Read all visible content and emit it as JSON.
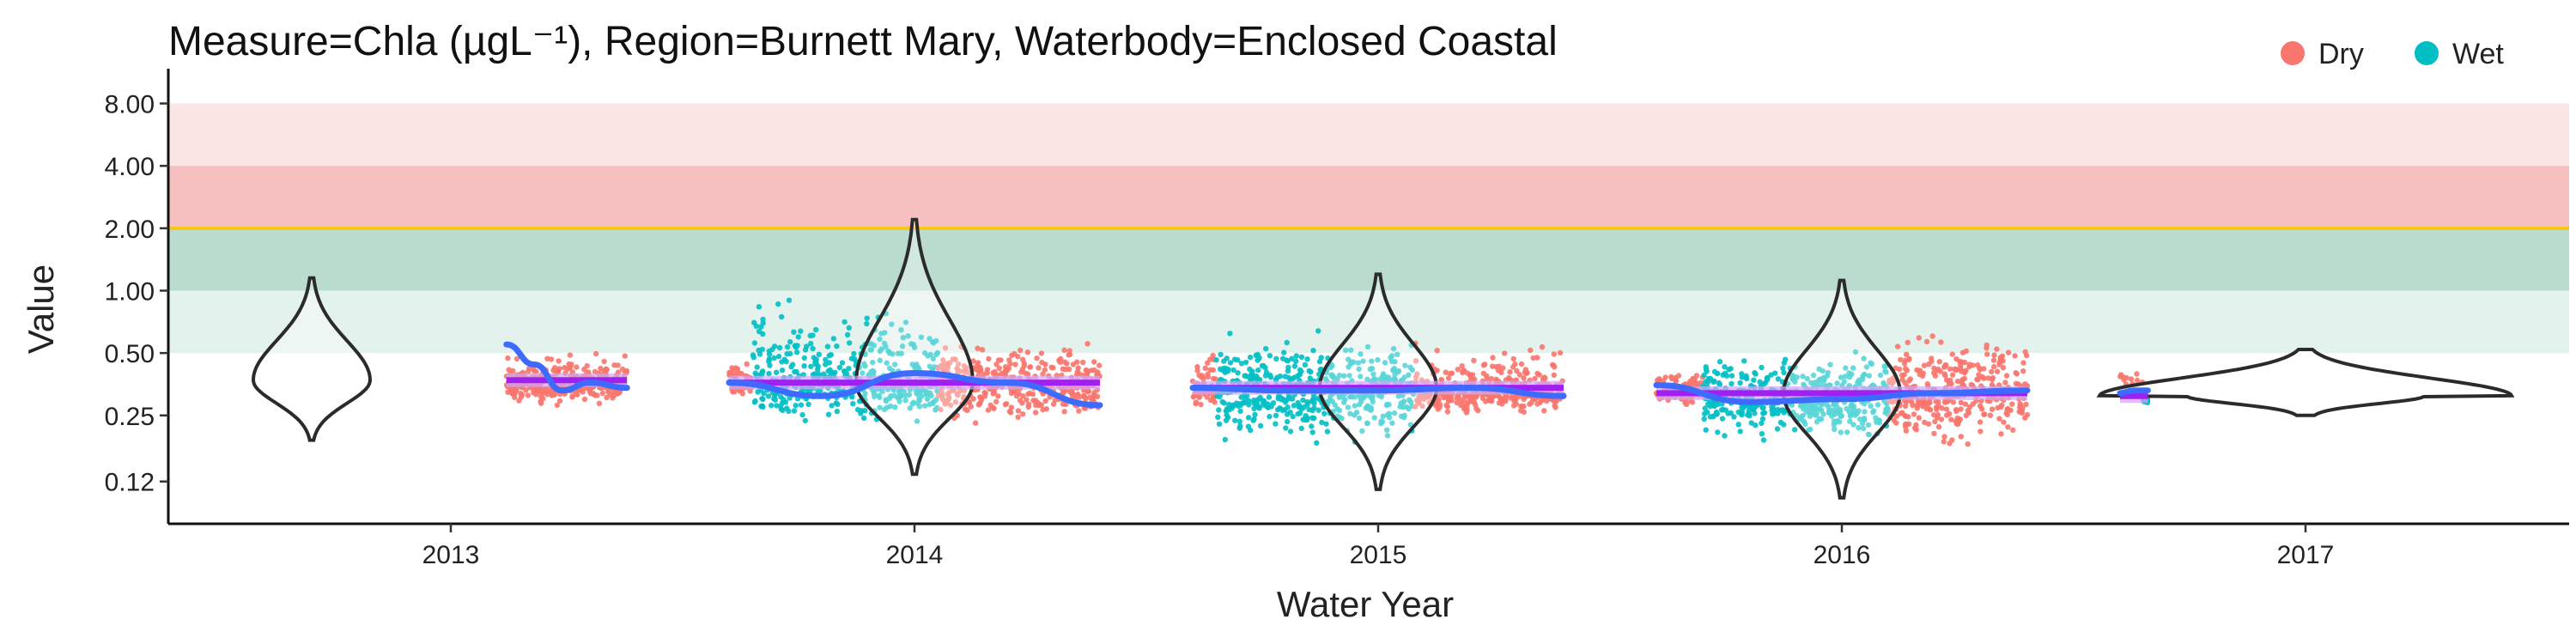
{
  "chart_data": {
    "type": "scatter",
    "title": "Measure=Chla (µgL⁻¹), Region=Burnett Mary, Waterbody=Enclosed Coastal",
    "xlabel": "Water Year",
    "ylabel": "Value",
    "y_scale": "log2",
    "ylim": [
      0.075,
      10.5
    ],
    "y_ticks": [
      0.12,
      0.25,
      0.5,
      1.0,
      2.0,
      4.0,
      8.0
    ],
    "y_tick_labels": [
      "0.12",
      "0.25",
      "0.50",
      "1.00",
      "2.00",
      "4.00",
      "8.00"
    ],
    "x_categories": [
      "2013",
      "2014",
      "2015",
      "2016",
      "2017"
    ],
    "guideline": {
      "value": 2.0,
      "color": "#f5c518"
    },
    "bands": [
      {
        "from": 4.0,
        "to": 8.0,
        "color": "#fbe6e6"
      },
      {
        "from": 2.0,
        "to": 4.0,
        "color": "#f7c0c0"
      },
      {
        "from": 1.0,
        "to": 2.0,
        "color": "#b9dccf"
      },
      {
        "from": 0.5,
        "to": 1.0,
        "color": "#e3f2ec"
      }
    ],
    "legend": {
      "position": "top-right",
      "items": [
        {
          "label": "Dry",
          "color": "#f8766d"
        },
        {
          "label": "Wet",
          "color": "#00bfc4"
        }
      ]
    },
    "colors": {
      "dry": "#f8766d",
      "wet": "#00bfc4",
      "smooth": "#3d6bff",
      "median": "#a020f0",
      "median_light": "#cfa6f5",
      "violin": "#2b2b2b"
    },
    "groups": [
      {
        "year": "2013",
        "median": 0.37,
        "violin": {
          "min": 0.19,
          "max": 1.15,
          "center_offset": -0.3
        },
        "points": [
          {
            "season": "Dry",
            "x_from": 0.12,
            "x_to": 0.38,
            "median": 0.35,
            "low": 0.25,
            "high": 0.65
          }
        ],
        "smooth": [
          [
            0.12,
            0.55
          ],
          [
            0.18,
            0.44
          ],
          [
            0.24,
            0.33
          ],
          [
            0.3,
            0.36
          ],
          [
            0.38,
            0.34
          ]
        ]
      },
      {
        "year": "2014",
        "median": 0.36,
        "violin": {
          "min": 0.13,
          "max": 2.2,
          "center_offset": 0.0
        },
        "points": [
          {
            "season": "Dry",
            "x_from": -0.4,
            "x_to": -0.35,
            "median": 0.36,
            "low": 0.27,
            "high": 0.55
          },
          {
            "season": "Wet",
            "x_from": -0.35,
            "x_to": 0.05,
            "median": 0.36,
            "low": 0.17,
            "high": 1.4
          },
          {
            "season": "Dry",
            "x_from": 0.05,
            "x_to": 0.4,
            "median": 0.35,
            "low": 0.18,
            "high": 0.8
          }
        ],
        "smooth": [
          [
            -0.4,
            0.36
          ],
          [
            -0.2,
            0.31
          ],
          [
            0.0,
            0.4
          ],
          [
            0.2,
            0.36
          ],
          [
            0.4,
            0.28
          ]
        ]
      },
      {
        "year": "2015",
        "median": 0.34,
        "violin": {
          "min": 0.11,
          "max": 1.2,
          "center_offset": 0.0
        },
        "points": [
          {
            "season": "Dry",
            "x_from": -0.4,
            "x_to": -0.35,
            "median": 0.34,
            "low": 0.24,
            "high": 0.8
          },
          {
            "season": "Wet",
            "x_from": -0.35,
            "x_to": 0.08,
            "median": 0.33,
            "low": 0.12,
            "high": 0.85
          },
          {
            "season": "Dry",
            "x_from": 0.08,
            "x_to": 0.4,
            "median": 0.32,
            "low": 0.22,
            "high": 0.75
          }
        ],
        "smooth": [
          [
            -0.4,
            0.34
          ],
          [
            -0.2,
            0.33
          ],
          [
            0.0,
            0.33
          ],
          [
            0.2,
            0.34
          ],
          [
            0.4,
            0.31
          ]
        ]
      },
      {
        "year": "2016",
        "median": 0.32,
        "violin": {
          "min": 0.1,
          "max": 1.12,
          "center_offset": 0.0
        },
        "points": [
          {
            "season": "Dry",
            "x_from": -0.4,
            "x_to": -0.3,
            "median": 0.33,
            "low": 0.25,
            "high": 0.5
          },
          {
            "season": "Wet",
            "x_from": -0.3,
            "x_to": 0.1,
            "median": 0.3,
            "low": 0.14,
            "high": 0.7
          },
          {
            "season": "Dry",
            "x_from": 0.1,
            "x_to": 0.4,
            "median": 0.32,
            "low": 0.12,
            "high": 1.05
          }
        ],
        "smooth": [
          [
            -0.4,
            0.35
          ],
          [
            -0.2,
            0.29
          ],
          [
            0.0,
            0.3
          ],
          [
            0.2,
            0.32
          ],
          [
            0.4,
            0.33
          ]
        ]
      },
      {
        "year": "2017",
        "median": 0.31,
        "violin": {
          "min": 0.25,
          "max": 0.52,
          "center_offset": 0.0
        },
        "points": [
          {
            "season": "Dry",
            "x_from": -0.4,
            "x_to": -0.35,
            "median": 0.33,
            "low": 0.28,
            "high": 0.5
          },
          {
            "season": "Wet",
            "x_from": -0.35,
            "x_to": -0.34,
            "median": 0.3,
            "low": 0.27,
            "high": 0.34
          }
        ],
        "smooth": [
          [
            -0.4,
            0.32
          ],
          [
            -0.37,
            0.33
          ],
          [
            -0.34,
            0.33
          ]
        ]
      }
    ]
  }
}
